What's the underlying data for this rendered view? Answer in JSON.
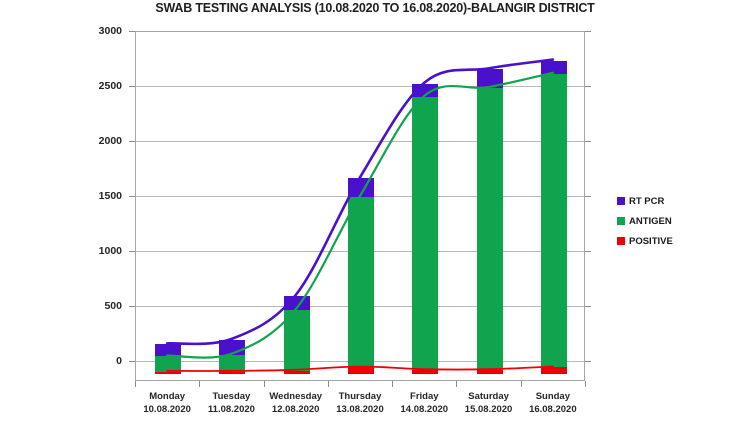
{
  "title": "SWAB TESTING ANALYSIS (10.08.2020 TO 16.08.2020)-BALANGIR DISTRICT",
  "chart_data": {
    "type": "bar",
    "subtype": "stacked-column-with-smoothed-overlay-lines",
    "title": "SWAB TESTING ANALYSIS (10.08.2020 TO 16.08.2020)-BALANGIR DISTRICT",
    "categories": [
      {
        "day": "Monday",
        "date": "10.08.2020"
      },
      {
        "day": "Tuesday",
        "date": "11.08.2020"
      },
      {
        "day": "Wednesday",
        "date": "12.08.2020"
      },
      {
        "day": "Thursday",
        "date": "13.08.2020"
      },
      {
        "day": "Friday",
        "date": "14.08.2020"
      },
      {
        "day": "Saturday",
        "date": "15.08.2020"
      },
      {
        "day": "Sunday",
        "date": "16.08.2020"
      }
    ],
    "series": [
      {
        "name": "RT PCR",
        "color": "#4a10cc",
        "role": "stack-top-cap-and-line",
        "values": [
          160,
          200,
          600,
          1670,
          2530,
          2660,
          2740
        ]
      },
      {
        "name": "ANTIGEN",
        "color": "#10a44e",
        "role": "stack-mid-and-line",
        "values": [
          50,
          65,
          470,
          1500,
          2410,
          2490,
          2620
        ]
      },
      {
        "name": "POSITIVE",
        "color": "#ee0005",
        "role": "stack-bottom-and-line",
        "values": [
          20,
          20,
          30,
          60,
          35,
          35,
          60
        ]
      }
    ],
    "xlabel": "",
    "ylabel": "",
    "ylim": [
      -182,
      3000
    ],
    "yticks": [
      0,
      500,
      1000,
      1500,
      2000,
      2500,
      3000
    ],
    "bar_base_value": -110,
    "grid": true,
    "legend_position": "right",
    "gridline_color": "#b8b8b8",
    "axis_border_color": "#a6a6a6",
    "bar_base_edge_color": "#7a3322"
  }
}
